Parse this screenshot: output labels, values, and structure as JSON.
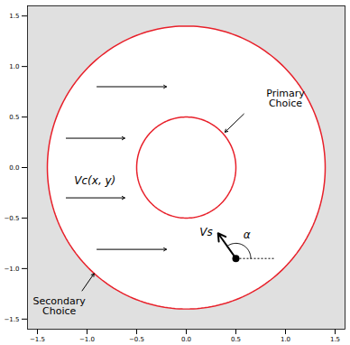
{
  "chart_data": {
    "type": "diagram",
    "color": "#e8202a",
    "xlim": [
      -1.6,
      1.6
    ],
    "ylim": [
      -1.6,
      1.6
    ],
    "xticks": [
      {
        "value": -1.5,
        "label": "−1.5"
      },
      {
        "value": -1,
        "label": "−1.0"
      },
      {
        "value": -0.5,
        "label": "−0.5"
      },
      {
        "value": 0,
        "label": "0.0"
      },
      {
        "value": 0.5,
        "label": "0.5"
      },
      {
        "value": 1,
        "label": "1.0"
      },
      {
        "value": 1.5,
        "label": "1.5"
      }
    ],
    "yticks": [
      {
        "value": -1.5,
        "label": "−1.5"
      },
      {
        "value": -1,
        "label": "−1.0"
      },
      {
        "value": -0.5,
        "label": "−0.5"
      },
      {
        "value": 0,
        "label": "0.0"
      },
      {
        "value": 0.5,
        "label": "0.5"
      },
      {
        "value": 1,
        "label": "1.0"
      },
      {
        "value": 1.5,
        "label": "1.5"
      }
    ],
    "circles": [
      {
        "cx": 0,
        "cy": 0,
        "r": 0.5
      },
      {
        "cx": 0,
        "cy": 0,
        "r": 1.4
      }
    ],
    "flow_arrows": [
      {
        "x1": -0.9,
        "y1": 0.8,
        "x2": -0.2,
        "y2": 0.8
      },
      {
        "x1": -1.21,
        "y1": 0.29,
        "x2": -0.62,
        "y2": 0.29
      },
      {
        "x1": -1.21,
        "y1": -0.3,
        "x2": -0.62,
        "y2": -0.3
      },
      {
        "x1": -0.9,
        "y1": -0.81,
        "x2": -0.2,
        "y2": -0.81
      }
    ],
    "point": {
      "x": 0.5,
      "y": -0.9,
      "x2": 0.32,
      "y2": -0.65,
      "ref_x2": 0.9
    },
    "annotations": [
      {
        "text": "Primary\nChoice",
        "x": 1.0,
        "y": 0.68,
        "ax1": 0.58,
        "ay1": 0.53,
        "ax2": 0.39,
        "ay2": 0.35
      },
      {
        "text": "Secondary\nChoice",
        "x": -1.28,
        "y": -1.37,
        "ax1": -1.05,
        "ay1": -1.22,
        "ax2": -0.93,
        "ay2": -1.05
      },
      {
        "text": "Vc(x, y)",
        "x": -0.92,
        "y": -0.13
      },
      {
        "text": "Vs",
        "x": 0.2,
        "y": -0.64
      },
      {
        "text": "α",
        "x": 0.61,
        "y": -0.67
      }
    ]
  }
}
